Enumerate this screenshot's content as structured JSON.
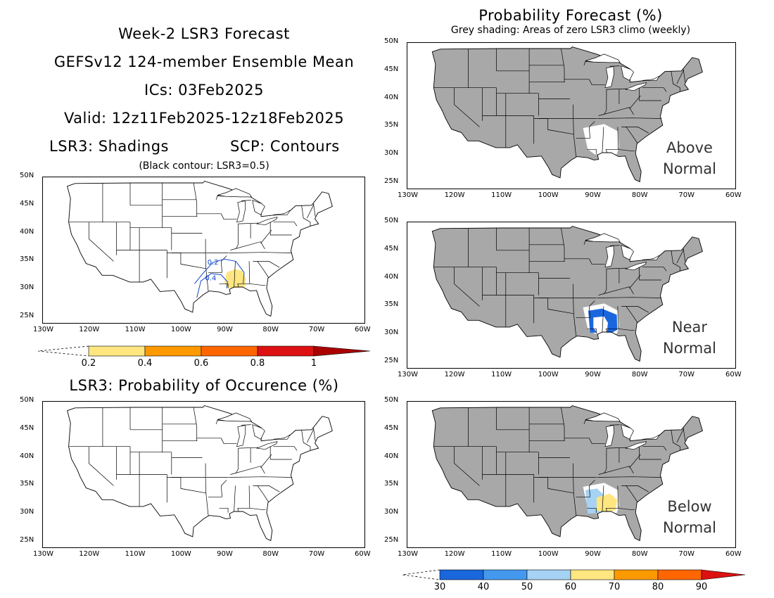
{
  "left_titles": {
    "line1": "Week-2 LSR3 Forecast",
    "line2": "GEFSv12 124-member Ensemble Mean",
    "line3": "ICs: 03Feb2025",
    "line4": "Valid: 12z11Feb2025-12z18Feb2025",
    "shadings": "LSR3: Shadings",
    "contours": "SCP: Contours",
    "black_contour_note": "(Black contour: LSR3=0.5)",
    "prob_occurrence": "LSR3: Probability of Occurence (%)"
  },
  "right_titles": {
    "main": "Probability Forecast (%)",
    "sub": "Grey shading: Areas of zero LSR3 climo (weekly)"
  },
  "panel_labels": {
    "above": [
      "Above",
      "Normal"
    ],
    "near": [
      "Near",
      "Normal"
    ],
    "below": [
      "Below",
      "Normal"
    ]
  },
  "axes": {
    "lat_ticks": [
      "50N",
      "45N",
      "40N",
      "35N",
      "30N",
      "25N"
    ],
    "lon_ticks": [
      "130W",
      "120W",
      "110W",
      "100W",
      "90W",
      "80W",
      "70W",
      "60W"
    ]
  },
  "contour_labels": [
    "0.2",
    "0.4"
  ],
  "lsr_colorbar": {
    "labels": [
      "0.2",
      "0.4",
      "0.6",
      "0.8",
      "1"
    ],
    "colors": [
      "#ffe680",
      "#ff9900",
      "#ff6600",
      "#dd1111",
      "#aa0000"
    ]
  },
  "prob_colorbar": {
    "labels": [
      "30",
      "40",
      "50",
      "60",
      "70",
      "80",
      "90"
    ],
    "colors": [
      "#1a66dd",
      "#4499ee",
      "#a6d2f4",
      "#ffe680",
      "#ff9900",
      "#ff6600",
      "#dd1111"
    ]
  },
  "colors": {
    "grey_zero_climo": "#a8a8a8",
    "contour_blue": "#1144cc",
    "yellow": "#ffe680",
    "dark_blue": "#1a66dd",
    "light_blue": "#a6d2f4"
  }
}
